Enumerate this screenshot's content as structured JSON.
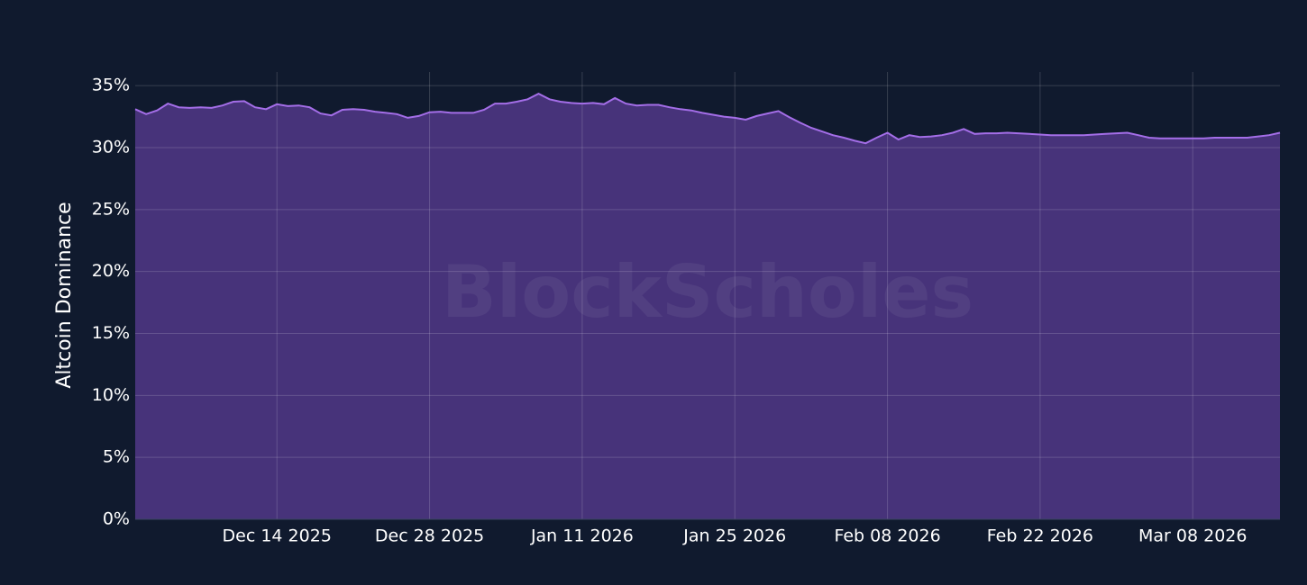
{
  "chart_data": {
    "type": "area",
    "y_label": "Altcoin Dominance",
    "watermark": "BlockScholes",
    "color": "#a46ee8",
    "fill": "#47337a",
    "grid": true,
    "xlim": [
      "2025-12-01",
      "2026-03-16"
    ],
    "ylim": [
      0,
      36.1
    ],
    "xticks": [
      {
        "value": "2025-12-14",
        "label": "Dec 14 2025"
      },
      {
        "value": "2025-12-28",
        "label": "Dec 28 2025"
      },
      {
        "value": "2026-01-11",
        "label": "Jan 11 2026"
      },
      {
        "value": "2026-01-25",
        "label": "Jan 25 2026"
      },
      {
        "value": "2026-02-08",
        "label": "Feb 08 2026"
      },
      {
        "value": "2026-02-22",
        "label": "Feb 22 2026"
      },
      {
        "value": "2026-03-08",
        "label": "Mar 08 2026"
      }
    ],
    "yticks": [
      {
        "value": 0,
        "label": "0%"
      },
      {
        "value": 5,
        "label": "5%"
      },
      {
        "value": 10,
        "label": "10%"
      },
      {
        "value": 15,
        "label": "15%"
      },
      {
        "value": 20,
        "label": "20%"
      },
      {
        "value": 25,
        "label": "25%"
      },
      {
        "value": 30,
        "label": "30%"
      },
      {
        "value": 35,
        "label": "35%"
      }
    ],
    "x": [
      "2025-12-01",
      "2025-12-02",
      "2025-12-03",
      "2025-12-04",
      "2025-12-05",
      "2025-12-06",
      "2025-12-07",
      "2025-12-08",
      "2025-12-09",
      "2025-12-10",
      "2025-12-11",
      "2025-12-12",
      "2025-12-13",
      "2025-12-14",
      "2025-12-15",
      "2025-12-16",
      "2025-12-17",
      "2025-12-18",
      "2025-12-19",
      "2025-12-20",
      "2025-12-21",
      "2025-12-22",
      "2025-12-23",
      "2025-12-24",
      "2025-12-25",
      "2025-12-26",
      "2025-12-27",
      "2025-12-28",
      "2025-12-29",
      "2025-12-30",
      "2025-12-31",
      "2026-01-01",
      "2026-01-02",
      "2026-01-03",
      "2026-01-04",
      "2026-01-05",
      "2026-01-06",
      "2026-01-07",
      "2026-01-08",
      "2026-01-09",
      "2026-01-10",
      "2026-01-11",
      "2026-01-12",
      "2026-01-13",
      "2026-01-14",
      "2026-01-15",
      "2026-01-16",
      "2026-01-17",
      "2026-01-18",
      "2026-01-19",
      "2026-01-20",
      "2026-01-21",
      "2026-01-22",
      "2026-01-23",
      "2026-01-24",
      "2026-01-25",
      "2026-01-26",
      "2026-01-27",
      "2026-01-28",
      "2026-01-29",
      "2026-01-30",
      "2026-01-31",
      "2026-02-01",
      "2026-02-02",
      "2026-02-03",
      "2026-02-04",
      "2026-02-05",
      "2026-02-06",
      "2026-02-07",
      "2026-02-08",
      "2026-02-09",
      "2026-02-10",
      "2026-02-11",
      "2026-02-12",
      "2026-02-13",
      "2026-02-14",
      "2026-02-15",
      "2026-02-16",
      "2026-02-17",
      "2026-02-18",
      "2026-02-19",
      "2026-02-20",
      "2026-02-21",
      "2026-02-22",
      "2026-02-23",
      "2026-02-24",
      "2026-02-25",
      "2026-02-26",
      "2026-02-27",
      "2026-02-28",
      "2026-03-01",
      "2026-03-02",
      "2026-03-03",
      "2026-03-04",
      "2026-03-05",
      "2026-03-06",
      "2026-03-07",
      "2026-03-08",
      "2026-03-09",
      "2026-03-10",
      "2026-03-11",
      "2026-03-12",
      "2026-03-13",
      "2026-03-14",
      "2026-03-15",
      "2026-03-16"
    ],
    "values": [
      33.1,
      32.7,
      33.0,
      33.55,
      33.25,
      33.2,
      33.25,
      33.2,
      33.4,
      33.7,
      33.75,
      33.25,
      33.1,
      33.5,
      33.35,
      33.4,
      33.25,
      32.75,
      32.6,
      33.05,
      33.1,
      33.05,
      32.9,
      32.8,
      32.7,
      32.4,
      32.55,
      32.85,
      32.9,
      32.8,
      32.8,
      32.8,
      33.05,
      33.55,
      33.55,
      33.7,
      33.9,
      34.35,
      33.9,
      33.7,
      33.6,
      33.55,
      33.6,
      33.5,
      34.0,
      33.55,
      33.4,
      33.45,
      33.45,
      33.25,
      33.1,
      33.0,
      32.8,
      32.65,
      32.5,
      32.4,
      32.25,
      32.55,
      32.75,
      32.95,
      32.45,
      32.0,
      31.6,
      31.3,
      31.0,
      30.8,
      30.55,
      30.35,
      30.8,
      31.2,
      30.65,
      31.0,
      30.85,
      30.9,
      31.0,
      31.2,
      31.5,
      31.1,
      31.15,
      31.15,
      31.2,
      31.15,
      31.1,
      31.05,
      31.0,
      31.0,
      31.0,
      31.0,
      31.05,
      31.1,
      31.15,
      31.2,
      31.0,
      30.8,
      30.75,
      30.75,
      30.75,
      30.75,
      30.75,
      30.8,
      30.8,
      30.8,
      30.8,
      30.9,
      31.0,
      31.2
    ]
  }
}
